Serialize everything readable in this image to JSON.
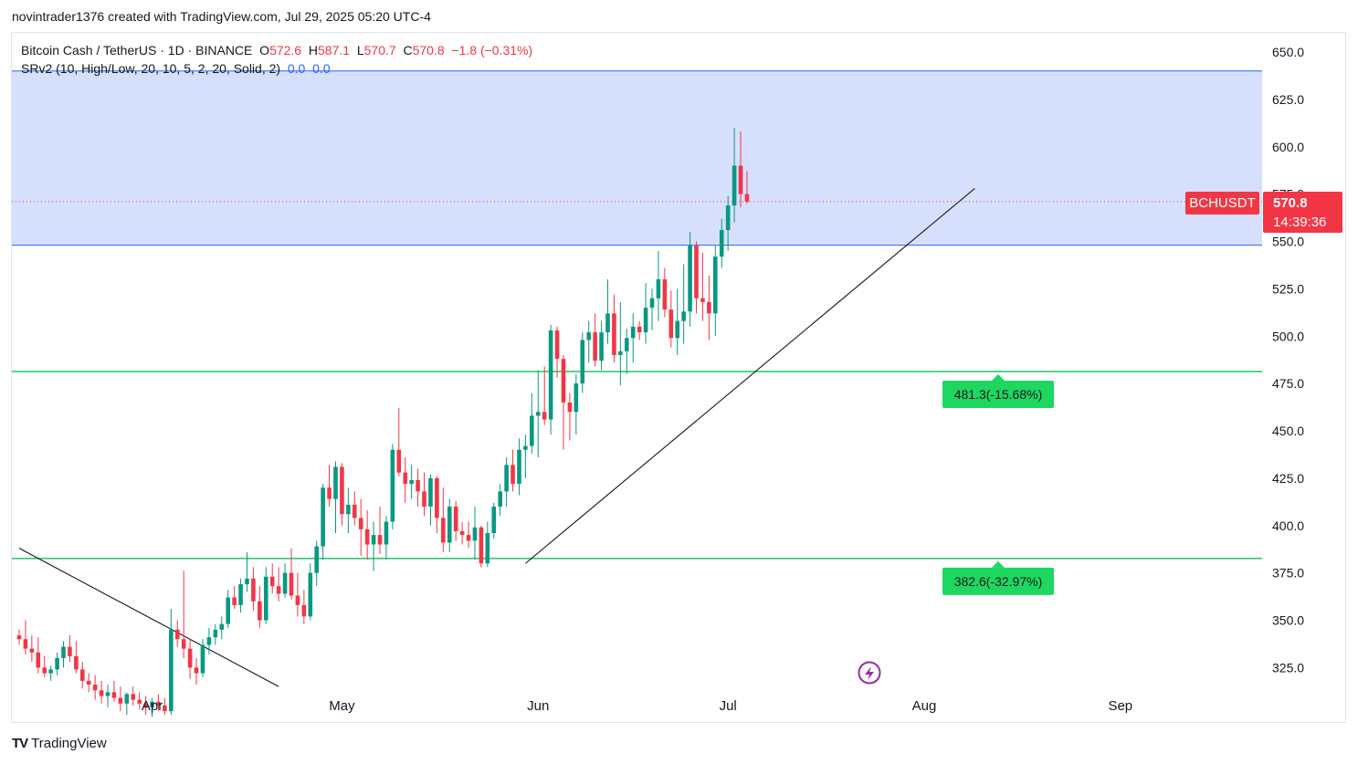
{
  "caption": "novintrader1376 created with TradingView.com, Jul 29, 2025 05:20 UTC-4",
  "legend": {
    "symbol": "Bitcoin Cash / TetherUS · 1D · BINANCE",
    "o_label": "O",
    "o": "572.6",
    "h_label": "H",
    "h": "587.1",
    "l_label": "L",
    "l": "570.7",
    "c_label": "C",
    "c": "570.8",
    "change": "−1.8 (−0.31%)",
    "indicator": "SRv2 (10, High/Low, 20, 10, 5, 2, 20, Solid, 2)",
    "ind_v1": "0.0",
    "ind_v2": "0.0"
  },
  "price_tag": {
    "symbol": "BCHUSDT",
    "price": "570.8",
    "countdown": "14:39:36"
  },
  "footer": {
    "brand": "TradingView",
    "logo": "TV"
  },
  "colors": {
    "up": "#089981",
    "down": "#f23645",
    "zone": "#d6e0fd",
    "support": "#2ecc71",
    "label_bg": "#1ed760"
  },
  "chart_data": {
    "type": "candlestick",
    "y_ticks": [
      "650.0",
      "625.0",
      "600.0",
      "575.0",
      "550.0",
      "525.0",
      "500.0",
      "475.0",
      "450.0",
      "425.0",
      "400.0",
      "375.0",
      "350.0",
      "325.0"
    ],
    "ylim": [
      310,
      658
    ],
    "x_ticks": [
      {
        "label": "Apr",
        "idx": 21
      },
      {
        "label": "May",
        "idx": 51
      },
      {
        "label": "Jun",
        "idx": 82
      },
      {
        "label": "Jul",
        "idx": 112
      },
      {
        "label": "Aug",
        "idx": 143
      },
      {
        "label": "Sep",
        "idx": 174
      }
    ],
    "resistance_zone": [
      548,
      640
    ],
    "support_levels": [
      {
        "value": 481.3,
        "label": "481.3(-15.68%)"
      },
      {
        "value": 382.6,
        "label": "382.6(-32.97%)"
      }
    ],
    "trendlines": [
      {
        "from": [
          0,
          388
        ],
        "to": [
          41,
          315
        ]
      },
      {
        "from": [
          80,
          380
        ],
        "to": [
          151,
          578
        ]
      }
    ],
    "candles": [
      [
        342,
        345,
        337,
        340
      ],
      [
        340,
        350,
        332,
        335
      ],
      [
        335,
        342,
        328,
        333
      ],
      [
        333,
        341,
        322,
        325
      ],
      [
        325,
        331,
        320,
        322
      ],
      [
        322,
        326,
        318,
        324
      ],
      [
        324,
        333,
        321,
        330
      ],
      [
        330,
        339,
        325,
        336
      ],
      [
        336,
        342,
        328,
        331
      ],
      [
        331,
        339,
        322,
        324
      ],
      [
        324,
        328,
        314,
        318
      ],
      [
        318,
        322,
        312,
        316
      ],
      [
        316,
        321,
        308,
        313
      ],
      [
        313,
        318,
        306,
        310
      ],
      [
        310,
        316,
        304,
        312
      ],
      [
        312,
        318,
        307,
        309
      ],
      [
        309,
        315,
        302,
        306
      ],
      [
        306,
        312,
        300,
        311
      ],
      [
        311,
        315,
        305,
        308
      ],
      [
        308,
        312,
        303,
        306
      ],
      [
        306,
        310,
        300,
        304
      ],
      [
        304,
        309,
        299,
        307
      ],
      [
        307,
        311,
        302,
        305
      ],
      [
        305,
        309,
        300,
        302
      ],
      [
        302,
        356,
        300,
        345
      ],
      [
        345,
        350,
        336,
        340
      ],
      [
        340,
        376,
        330,
        335
      ],
      [
        335,
        340,
        319,
        325
      ],
      [
        325,
        330,
        316,
        322
      ],
      [
        322,
        340,
        320,
        337
      ],
      [
        337,
        346,
        332,
        341
      ],
      [
        341,
        348,
        337,
        345
      ],
      [
        345,
        352,
        340,
        348
      ],
      [
        348,
        366,
        346,
        362
      ],
      [
        362,
        368,
        356,
        358
      ],
      [
        358,
        372,
        354,
        369
      ],
      [
        369,
        386,
        365,
        372
      ],
      [
        372,
        378,
        355,
        360
      ],
      [
        360,
        368,
        346,
        350
      ],
      [
        350,
        378,
        348,
        373
      ],
      [
        373,
        380,
        364,
        368
      ],
      [
        368,
        378,
        360,
        364
      ],
      [
        364,
        380,
        362,
        375
      ],
      [
        375,
        388,
        361,
        363
      ],
      [
        363,
        375,
        352,
        358
      ],
      [
        358,
        366,
        348,
        352
      ],
      [
        352,
        380,
        350,
        375
      ],
      [
        375,
        392,
        368,
        389
      ],
      [
        389,
        422,
        382,
        420
      ],
      [
        420,
        432,
        410,
        414
      ],
      [
        414,
        434,
        396,
        431
      ],
      [
        431,
        433,
        400,
        406
      ],
      [
        406,
        420,
        396,
        411
      ],
      [
        411,
        418,
        400,
        404
      ],
      [
        404,
        414,
        384,
        398
      ],
      [
        398,
        408,
        382,
        390
      ],
      [
        390,
        402,
        376,
        395
      ],
      [
        395,
        410,
        385,
        390
      ],
      [
        390,
        405,
        382,
        402
      ],
      [
        402,
        443,
        398,
        440
      ],
      [
        440,
        462,
        426,
        428
      ],
      [
        428,
        436,
        412,
        422
      ],
      [
        422,
        432,
        414,
        424
      ],
      [
        424,
        430,
        410,
        418
      ],
      [
        418,
        428,
        405,
        410
      ],
      [
        410,
        427,
        400,
        425
      ],
      [
        425,
        426,
        396,
        404
      ],
      [
        404,
        420,
        386,
        391
      ],
      [
        391,
        414,
        386,
        410
      ],
      [
        410,
        413,
        392,
        397
      ],
      [
        397,
        402,
        390,
        395
      ],
      [
        395,
        402,
        388,
        392
      ],
      [
        392,
        410,
        382,
        399
      ],
      [
        399,
        400,
        378,
        380
      ],
      [
        380,
        402,
        378,
        396
      ],
      [
        396,
        412,
        393,
        410
      ],
      [
        410,
        422,
        405,
        418
      ],
      [
        418,
        436,
        410,
        432
      ],
      [
        432,
        440,
        418,
        422
      ],
      [
        422,
        446,
        416,
        440
      ],
      [
        440,
        448,
        425,
        442
      ],
      [
        442,
        470,
        438,
        458
      ],
      [
        458,
        482,
        436,
        460
      ],
      [
        460,
        484,
        453,
        456
      ],
      [
        456,
        506,
        448,
        503
      ],
      [
        503,
        505,
        478,
        488
      ],
      [
        488,
        490,
        440,
        465
      ],
      [
        465,
        470,
        445,
        460
      ],
      [
        460,
        480,
        448,
        475
      ],
      [
        475,
        502,
        470,
        498
      ],
      [
        498,
        508,
        486,
        502
      ],
      [
        502,
        512,
        484,
        487
      ],
      [
        487,
        508,
        482,
        502
      ],
      [
        502,
        530,
        496,
        512
      ],
      [
        512,
        522,
        486,
        490
      ],
      [
        490,
        518,
        474,
        492
      ],
      [
        492,
        504,
        480,
        499
      ],
      [
        499,
        512,
        486,
        505
      ],
      [
        505,
        508,
        498,
        502
      ],
      [
        502,
        528,
        496,
        515
      ],
      [
        515,
        525,
        503,
        520
      ],
      [
        520,
        545,
        508,
        530
      ],
      [
        530,
        536,
        510,
        514
      ],
      [
        514,
        524,
        494,
        499
      ],
      [
        499,
        525,
        490,
        508
      ],
      [
        508,
        538,
        496,
        513
      ],
      [
        513,
        555,
        505,
        548
      ],
      [
        548,
        550,
        512,
        520
      ],
      [
        520,
        544,
        508,
        518
      ],
      [
        518,
        532,
        498,
        512
      ],
      [
        512,
        548,
        500,
        542
      ],
      [
        542,
        562,
        536,
        556
      ],
      [
        556,
        574,
        545,
        569
      ],
      [
        569,
        610,
        560,
        590
      ],
      [
        590,
        608,
        568,
        575
      ],
      [
        575,
        587,
        570,
        571
      ]
    ]
  }
}
